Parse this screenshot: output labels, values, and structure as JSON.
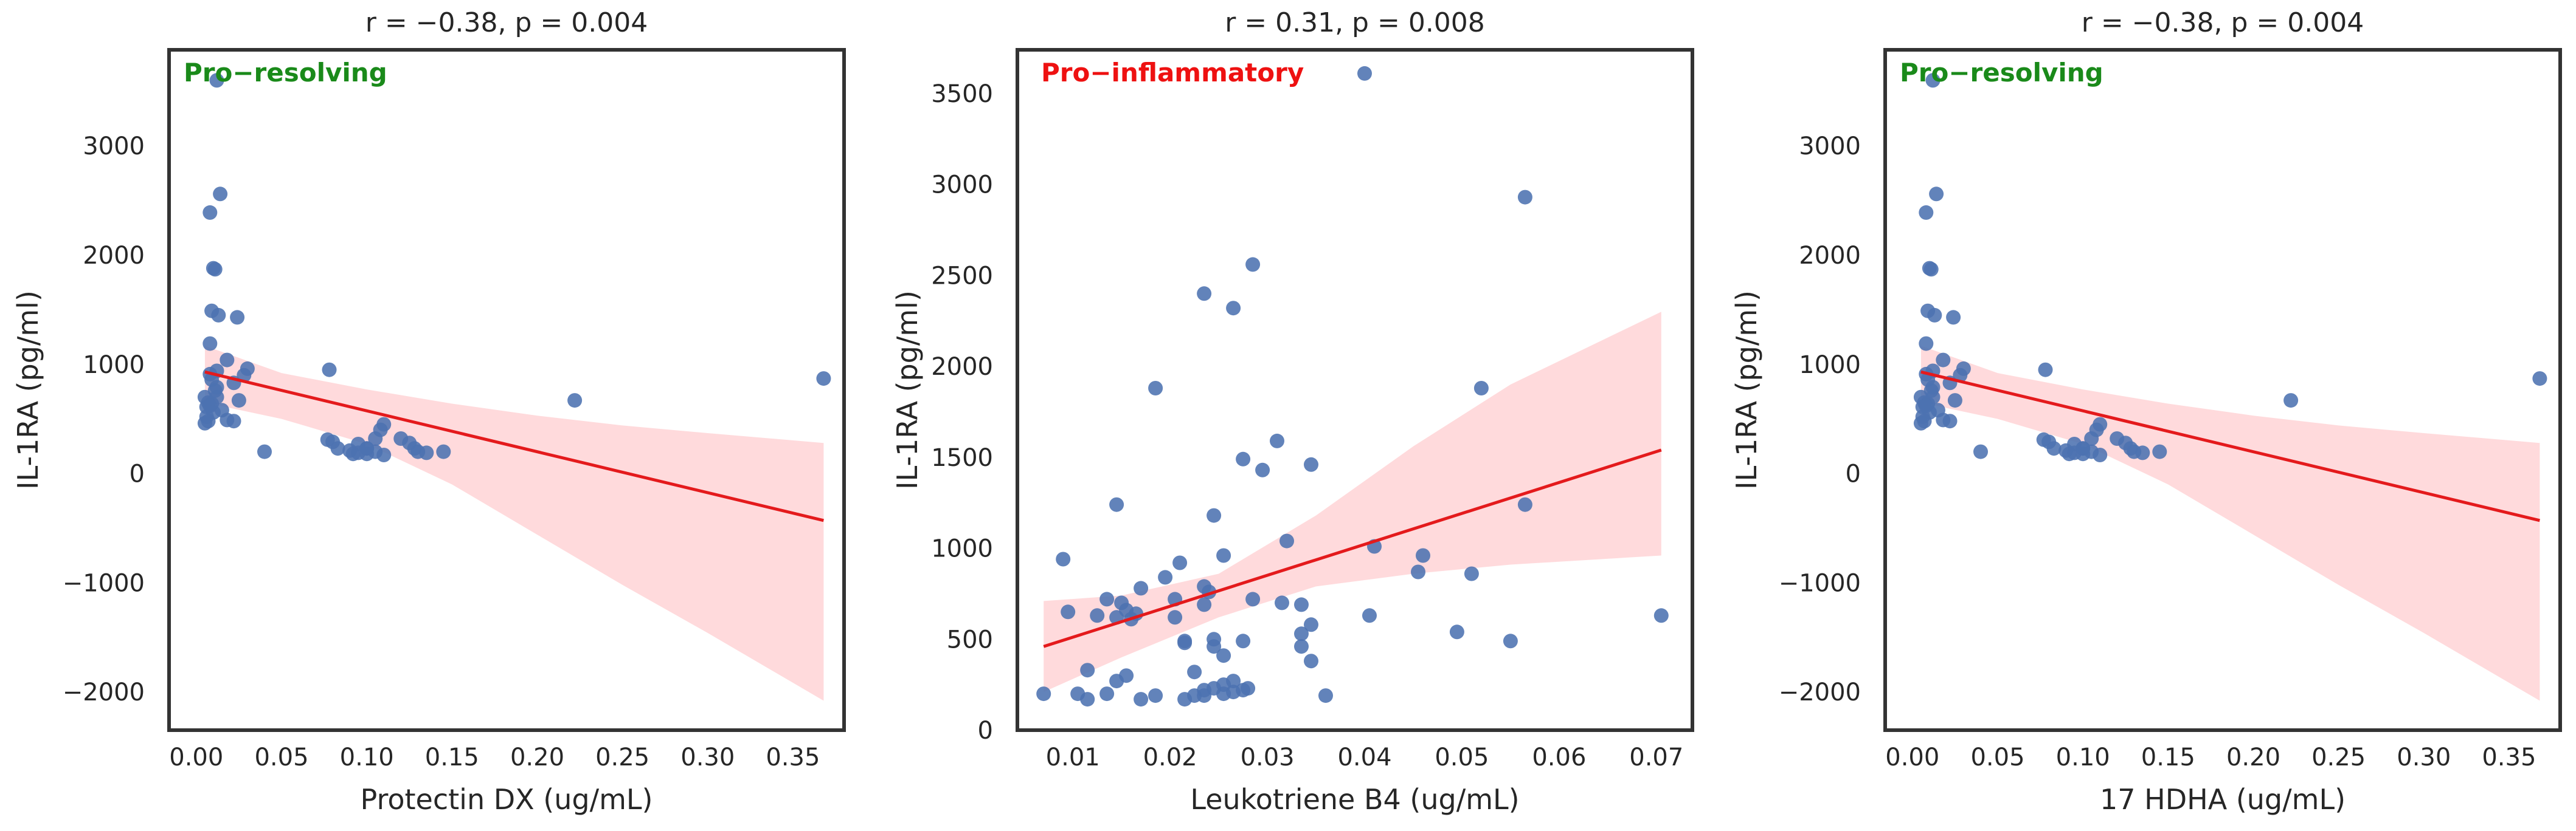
{
  "colors": {
    "point": "#4C72B0",
    "fit_line": "#e41a1c",
    "ci_band": "#ffd3d6",
    "frame": "#333333",
    "pro_resolving": "#1a8a1a",
    "pro_inflammatory": "#ee1111"
  },
  "chart_data": [
    {
      "type": "scatter",
      "title": "r = −0.38, p = 0.004",
      "xlabel": "Protectin DX (ug/mL)",
      "ylabel": "IL-1RA (pg/ml)",
      "annotation": "Pro−resolving",
      "annotation_color": "#1a8a1a",
      "xlim": [
        -0.016,
        0.38
      ],
      "ylim": [
        -2350,
        3880
      ],
      "xticks": [
        0.0,
        0.05,
        0.1,
        0.15,
        0.2,
        0.25,
        0.3,
        0.35
      ],
      "xtick_labels": [
        "0.00",
        "0.05",
        "0.10",
        "0.15",
        "0.20",
        "0.25",
        "0.30",
        "0.35"
      ],
      "yticks": [
        -2000,
        -1000,
        0,
        1000,
        2000,
        3000
      ],
      "ytick_labels": [
        "−2000",
        "−1000",
        "0",
        "1000",
        "2000",
        "3000"
      ],
      "fit": {
        "x": [
          0.005,
          0.368
        ],
        "y": [
          930,
          -430
        ]
      },
      "ci": {
        "x": [
          0.005,
          0.05,
          0.1,
          0.15,
          0.2,
          0.25,
          0.3,
          0.368
        ],
        "upper": [
          1170,
          920,
          770,
          640,
          530,
          440,
          370,
          280
        ],
        "lower": [
          650,
          500,
          270,
          -100,
          -560,
          -1020,
          -1460,
          -2080
        ]
      },
      "points": {
        "x": [
          0.012,
          0.008,
          0.014,
          0.01,
          0.011,
          0.009,
          0.013,
          0.024,
          0.008,
          0.03,
          0.012,
          0.018,
          0.022,
          0.009,
          0.011,
          0.005,
          0.007,
          0.009,
          0.006,
          0.012,
          0.008,
          0.015,
          0.01,
          0.006,
          0.007,
          0.005,
          0.025,
          0.028,
          0.018,
          0.022,
          0.012,
          0.008,
          0.04,
          0.078,
          0.077,
          0.08,
          0.083,
          0.09,
          0.095,
          0.1,
          0.105,
          0.1,
          0.095,
          0.11,
          0.108,
          0.12,
          0.125,
          0.13,
          0.11,
          0.128,
          0.145,
          0.135,
          0.105,
          0.1,
          0.092,
          0.222,
          0.368
        ],
        "y": [
          3600,
          2390,
          2560,
          1880,
          1870,
          1490,
          1450,
          1430,
          1190,
          960,
          940,
          1040,
          830,
          860,
          760,
          700,
          650,
          640,
          610,
          700,
          620,
          580,
          560,
          520,
          480,
          460,
          670,
          900,
          490,
          480,
          790,
          910,
          200,
          950,
          310,
          290,
          230,
          210,
          190,
          180,
          200,
          230,
          270,
          450,
          400,
          320,
          280,
          200,
          170,
          230,
          200,
          190,
          320,
          230,
          180,
          670,
          870
        ]
      }
    },
    {
      "type": "scatter",
      "title": "r = 0.31, p = 0.008",
      "xlabel": "Leukotriene B4 (ug/mL)",
      "ylabel": "IL-1RA (pg/ml)",
      "annotation": "Pro−inflammatory",
      "annotation_color": "#ee1111",
      "xlim": [
        0.0043,
        0.0737
      ],
      "ylim": [
        0,
        3740
      ],
      "xticks": [
        0.01,
        0.02,
        0.03,
        0.04,
        0.05,
        0.06,
        0.07
      ],
      "xtick_labels": [
        "0.01",
        "0.02",
        "0.03",
        "0.04",
        "0.05",
        "0.06",
        "0.07"
      ],
      "yticks": [
        0,
        500,
        1000,
        1500,
        2000,
        2500,
        3000,
        3500
      ],
      "ytick_labels": [
        "0",
        "500",
        "1000",
        "1500",
        "2000",
        "2500",
        "3000",
        "3500"
      ],
      "fit": {
        "x": [
          0.007,
          0.0705
        ],
        "y": [
          460,
          1540
        ]
      },
      "ci": {
        "x": [
          0.007,
          0.015,
          0.025,
          0.035,
          0.045,
          0.055,
          0.0705
        ],
        "upper": [
          710,
          740,
          860,
          1180,
          1560,
          1900,
          2300
        ],
        "lower": [
          210,
          400,
          620,
          790,
          860,
          910,
          960
        ]
      },
      "points": {
        "x": [
          0.04,
          0.0565,
          0.0285,
          0.0235,
          0.0265,
          0.0185,
          0.052,
          0.0565,
          0.0145,
          0.0275,
          0.031,
          0.0345,
          0.0295,
          0.009,
          0.0245,
          0.032,
          0.041,
          0.046,
          0.021,
          0.0255,
          0.0195,
          0.017,
          0.0235,
          0.0205,
          0.0235,
          0.024,
          0.0135,
          0.015,
          0.0155,
          0.0165,
          0.0125,
          0.0095,
          0.0115,
          0.0335,
          0.0345,
          0.0335,
          0.0345,
          0.0335,
          0.0285,
          0.0275,
          0.0245,
          0.0215,
          0.0215,
          0.0245,
          0.0255,
          0.0265,
          0.028,
          0.0225,
          0.0235,
          0.0245,
          0.0255,
          0.0265,
          0.0275,
          0.0225,
          0.0185,
          0.017,
          0.0155,
          0.0145,
          0.0135,
          0.0105,
          0.0115,
          0.007,
          0.0255,
          0.0215,
          0.0235,
          0.036,
          0.051,
          0.0455,
          0.0405,
          0.0495,
          0.055,
          0.0705,
          0.0315,
          0.016,
          0.0145,
          0.0205
        ],
        "y": [
          3610,
          2930,
          2560,
          2400,
          2320,
          1880,
          1880,
          1240,
          1240,
          1490,
          1590,
          1460,
          1430,
          940,
          1180,
          1040,
          1010,
          960,
          920,
          960,
          840,
          780,
          790,
          720,
          690,
          760,
          720,
          700,
          660,
          640,
          630,
          650,
          330,
          690,
          580,
          460,
          380,
          530,
          720,
          490,
          500,
          490,
          480,
          460,
          410,
          270,
          230,
          320,
          220,
          230,
          200,
          210,
          220,
          190,
          190,
          170,
          300,
          270,
          200,
          200,
          170,
          200,
          250,
          170,
          190,
          190,
          860,
          870,
          630,
          540,
          490,
          630,
          700,
          610,
          620,
          620
        ]
      }
    },
    {
      "type": "scatter",
      "title": "r = −0.38, p = 0.004",
      "xlabel": "17 HDHA (ug/mL)",
      "ylabel": "IL-1RA (pg/ml)",
      "annotation": "Pro−resolving",
      "annotation_color": "#1a8a1a",
      "xlim": [
        -0.016,
        0.38
      ],
      "ylim": [
        -2350,
        3880
      ],
      "xticks": [
        0.0,
        0.05,
        0.1,
        0.15,
        0.2,
        0.25,
        0.3,
        0.35
      ],
      "xtick_labels": [
        "0.00",
        "0.05",
        "0.10",
        "0.15",
        "0.20",
        "0.25",
        "0.30",
        "0.35"
      ],
      "yticks": [
        -2000,
        -1000,
        0,
        1000,
        2000,
        3000
      ],
      "ytick_labels": [
        "−2000",
        "−1000",
        "0",
        "1000",
        "2000",
        "3000"
      ],
      "fit": {
        "x": [
          0.005,
          0.368
        ],
        "y": [
          930,
          -430
        ]
      },
      "ci": {
        "x": [
          0.005,
          0.05,
          0.1,
          0.15,
          0.2,
          0.25,
          0.3,
          0.368
        ],
        "upper": [
          1170,
          920,
          770,
          640,
          530,
          440,
          370,
          280
        ],
        "lower": [
          650,
          500,
          270,
          -100,
          -560,
          -1020,
          -1460,
          -2080
        ]
      },
      "points": {
        "x": [
          0.012,
          0.008,
          0.014,
          0.01,
          0.011,
          0.009,
          0.013,
          0.024,
          0.008,
          0.03,
          0.012,
          0.018,
          0.022,
          0.009,
          0.011,
          0.005,
          0.007,
          0.009,
          0.006,
          0.012,
          0.008,
          0.015,
          0.01,
          0.006,
          0.007,
          0.005,
          0.025,
          0.028,
          0.018,
          0.022,
          0.012,
          0.008,
          0.04,
          0.078,
          0.077,
          0.08,
          0.083,
          0.09,
          0.095,
          0.1,
          0.105,
          0.1,
          0.095,
          0.11,
          0.108,
          0.12,
          0.125,
          0.13,
          0.11,
          0.128,
          0.145,
          0.135,
          0.105,
          0.1,
          0.092,
          0.222,
          0.368
        ],
        "y": [
          3600,
          2390,
          2560,
          1880,
          1870,
          1490,
          1450,
          1430,
          1190,
          960,
          940,
          1040,
          830,
          860,
          760,
          700,
          650,
          640,
          610,
          700,
          620,
          580,
          560,
          520,
          480,
          460,
          670,
          900,
          490,
          480,
          790,
          910,
          200,
          950,
          310,
          290,
          230,
          210,
          190,
          180,
          200,
          230,
          270,
          450,
          400,
          320,
          280,
          200,
          170,
          230,
          200,
          190,
          320,
          230,
          180,
          670,
          870
        ]
      }
    }
  ]
}
